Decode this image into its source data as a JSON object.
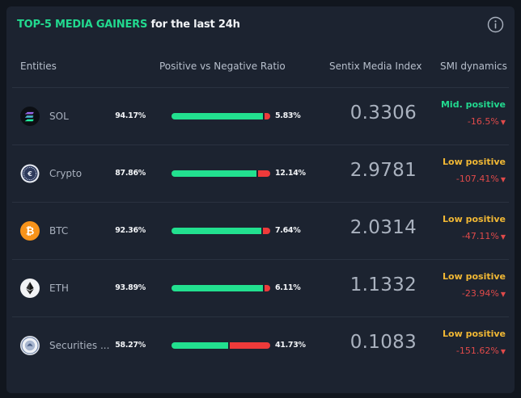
{
  "widget": {
    "title_accent": "TOP-5 MEDIA GAINERS",
    "title_rest": " for the last 24h"
  },
  "columns": {
    "entities": "Entities",
    "ratio": "Positive vs Negative Ratio",
    "index": "Sentix Media Index",
    "dynamics": "SMI dynamics"
  },
  "colors": {
    "positive": "#22e08f",
    "negative": "#ee3a3a",
    "mid_positive": "#22d98f",
    "low_positive": "#f1b834"
  },
  "rows": [
    {
      "name": "SOL",
      "icon": "solana-icon",
      "positive_pct": "94.17%",
      "negative_pct": "5.83%",
      "positive": 94.17,
      "negative": 5.83,
      "index": "0.3306",
      "dynamic_label": "Mid. positive",
      "dynamic_level": "mid",
      "change": "-16.5%"
    },
    {
      "name": "Crypto",
      "icon": "crypto-icon",
      "positive_pct": "87.86%",
      "negative_pct": "12.14%",
      "positive": 87.86,
      "negative": 12.14,
      "index": "2.9781",
      "dynamic_label": "Low positive",
      "dynamic_level": "low",
      "change": "-107.41%"
    },
    {
      "name": "BTC",
      "icon": "bitcoin-icon",
      "positive_pct": "92.36%",
      "negative_pct": "7.64%",
      "positive": 92.36,
      "negative": 7.64,
      "index": "2.0314",
      "dynamic_label": "Low positive",
      "dynamic_level": "low",
      "change": "-47.11%"
    },
    {
      "name": "ETH",
      "icon": "ethereum-icon",
      "positive_pct": "93.89%",
      "negative_pct": "6.11%",
      "positive": 93.89,
      "negative": 6.11,
      "index": "1.1332",
      "dynamic_label": "Low positive",
      "dynamic_level": "low",
      "change": "-23.94%"
    },
    {
      "name": "Securities ...",
      "icon": "sec-seal-icon",
      "positive_pct": "58.27%",
      "negative_pct": "41.73%",
      "positive": 58.27,
      "negative": 41.73,
      "index": "0.1083",
      "dynamic_label": "Low positive",
      "dynamic_level": "low",
      "change": "-151.62%"
    }
  ]
}
